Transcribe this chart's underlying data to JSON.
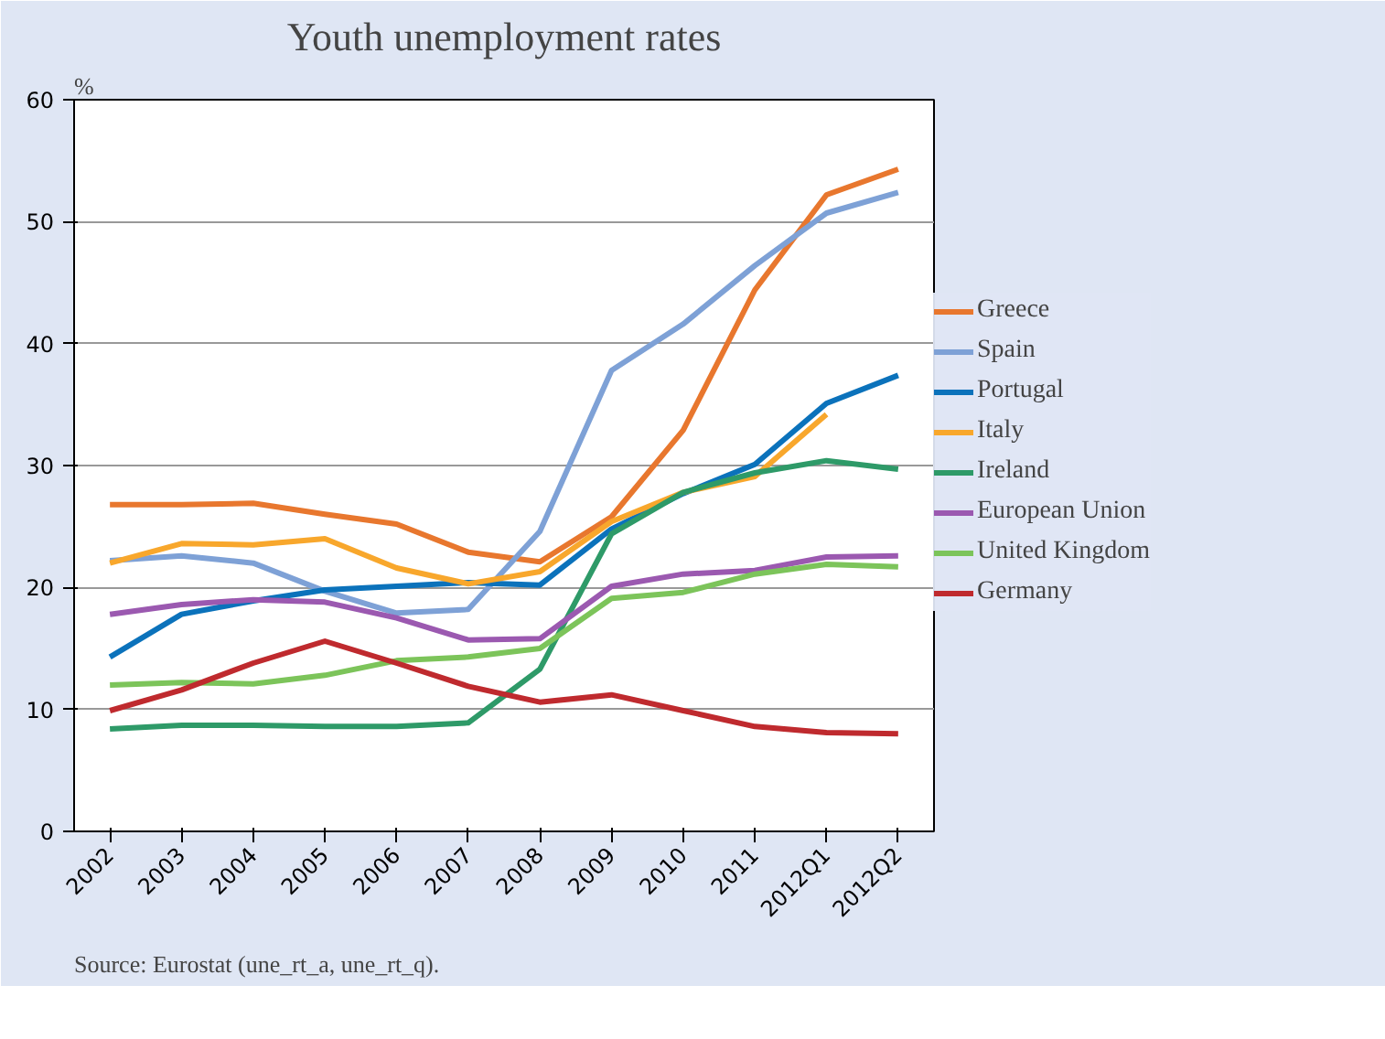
{
  "chart_data": {
    "type": "line",
    "title": "Youth unemployment rates",
    "ylabel": "%",
    "categories": [
      "2002",
      "2003",
      "2004",
      "2005",
      "2006",
      "2007",
      "2008",
      "2009",
      "2010",
      "2011",
      "2012Q1",
      "2012Q2"
    ],
    "series": [
      {
        "name": "Greece",
        "color": "#e8772e",
        "values": [
          26.8,
          26.8,
          26.9,
          26.0,
          25.2,
          22.9,
          22.1,
          25.8,
          32.9,
          44.4,
          52.2,
          54.3
        ]
      },
      {
        "name": "Spain",
        "color": "#7ea1d6",
        "values": [
          22.2,
          22.6,
          22.0,
          19.7,
          17.9,
          18.2,
          24.6,
          37.8,
          41.6,
          46.4,
          50.7,
          52.4
        ]
      },
      {
        "name": "Portugal",
        "color": "#0b72bb",
        "values": [
          14.3,
          17.8,
          18.9,
          19.8,
          20.1,
          20.4,
          20.2,
          24.8,
          27.7,
          30.1,
          35.1,
          37.4
        ]
      },
      {
        "name": "Italy",
        "color": "#f8a72c",
        "values": [
          22.0,
          23.6,
          23.5,
          24.0,
          21.6,
          20.3,
          21.3,
          25.4,
          27.8,
          29.1,
          34.2,
          null
        ]
      },
      {
        "name": "Ireland",
        "color": "#2e9a68",
        "values": [
          8.4,
          8.7,
          8.7,
          8.6,
          8.6,
          8.9,
          13.3,
          24.4,
          27.8,
          29.4,
          30.4,
          29.7
        ]
      },
      {
        "name": "European Union",
        "color": "#9b59b0",
        "values": [
          17.8,
          18.6,
          19.0,
          18.8,
          17.5,
          15.7,
          15.8,
          20.1,
          21.1,
          21.4,
          22.5,
          22.6
        ]
      },
      {
        "name": "United Kingdom",
        "color": "#7cc45a",
        "values": [
          12.0,
          12.2,
          12.1,
          12.8,
          14.0,
          14.3,
          15.0,
          19.1,
          19.6,
          21.1,
          21.9,
          21.7
        ]
      },
      {
        "name": "Germany",
        "color": "#bf2a2e",
        "values": [
          9.9,
          11.6,
          13.8,
          15.6,
          13.8,
          11.9,
          10.6,
          11.2,
          9.9,
          8.6,
          8.1,
          8.0
        ]
      }
    ],
    "ylim": [
      0,
      60
    ],
    "yticks": [
      0,
      10,
      20,
      30,
      40,
      50,
      60
    ],
    "grid": "y",
    "legend": "right",
    "annotations": [
      "Source: Eurostat (une_rt_a, une_rt_q)."
    ]
  }
}
